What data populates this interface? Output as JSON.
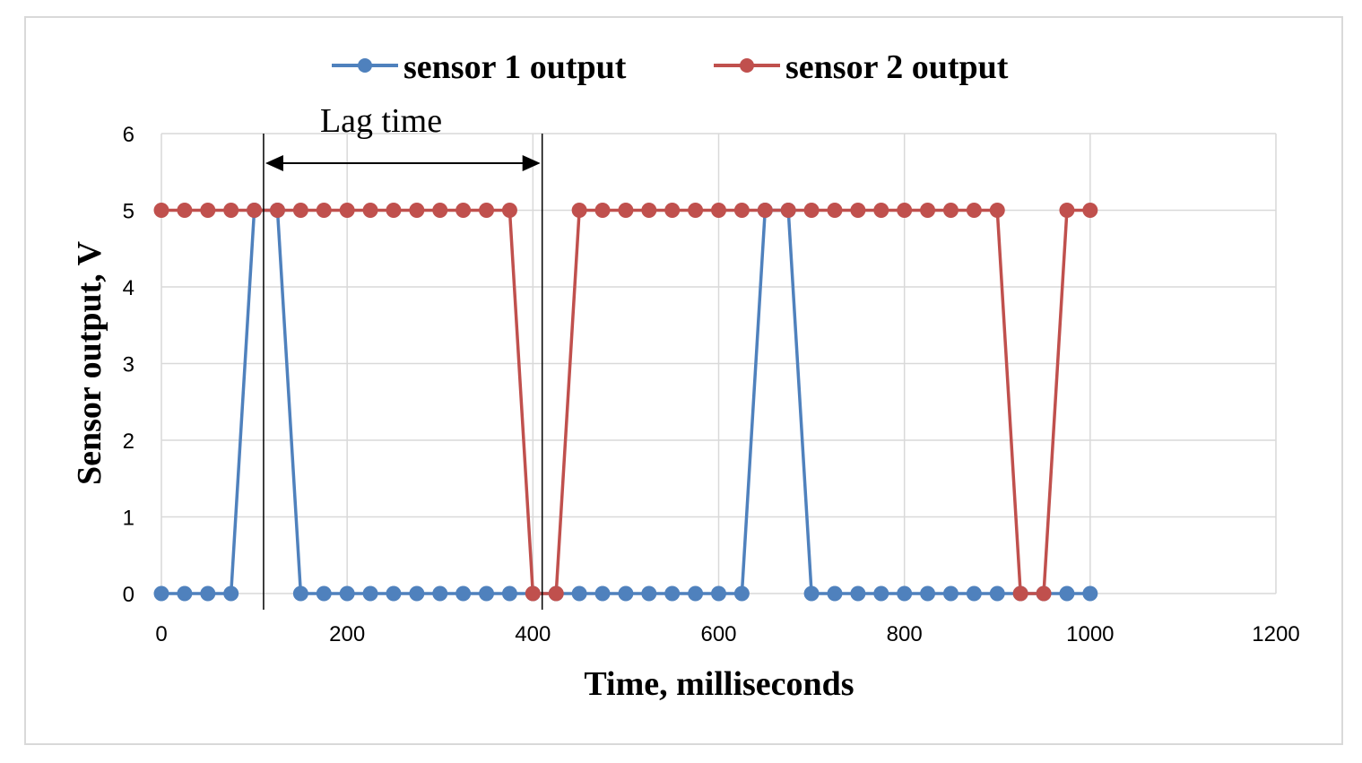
{
  "chart_data": {
    "type": "line",
    "title": "",
    "xlabel": "Time, milliseconds",
    "ylabel": "Sensor output, V",
    "xlim": [
      0,
      1200
    ],
    "ylim": [
      0,
      6
    ],
    "xticks": [
      0,
      200,
      400,
      600,
      800,
      1000,
      1200
    ],
    "yticks": [
      0,
      1,
      2,
      3,
      4,
      5,
      6
    ],
    "grid": true,
    "legend": "top-center",
    "x": [
      0,
      25,
      50,
      75,
      100,
      125,
      150,
      175,
      200,
      225,
      250,
      275,
      300,
      325,
      350,
      375,
      400,
      425,
      450,
      475,
      500,
      525,
      550,
      575,
      600,
      625,
      650,
      675,
      700,
      725,
      750,
      775,
      800,
      825,
      850,
      875,
      900,
      925,
      950,
      975,
      1000
    ],
    "series": [
      {
        "name": "sensor 1 output",
        "color": "#4f81bd",
        "values": [
          0,
          0,
          0,
          0,
          5,
          5,
          0,
          0,
          0,
          0,
          0,
          0,
          0,
          0,
          0,
          0,
          0,
          0,
          0,
          0,
          0,
          0,
          0,
          0,
          0,
          0,
          5,
          5,
          0,
          0,
          0,
          0,
          0,
          0,
          0,
          0,
          0,
          0,
          0,
          0,
          0
        ]
      },
      {
        "name": "sensor 2 output",
        "color": "#c0504d",
        "values": [
          5,
          5,
          5,
          5,
          5,
          5,
          5,
          5,
          5,
          5,
          5,
          5,
          5,
          5,
          5,
          5,
          0,
          0,
          5,
          5,
          5,
          5,
          5,
          5,
          5,
          5,
          5,
          5,
          5,
          5,
          5,
          5,
          5,
          5,
          5,
          5,
          5,
          0,
          0,
          5,
          5
        ]
      }
    ],
    "annotations": [
      {
        "label": "Lag time",
        "x_start": 110,
        "x_end": 410
      }
    ]
  }
}
